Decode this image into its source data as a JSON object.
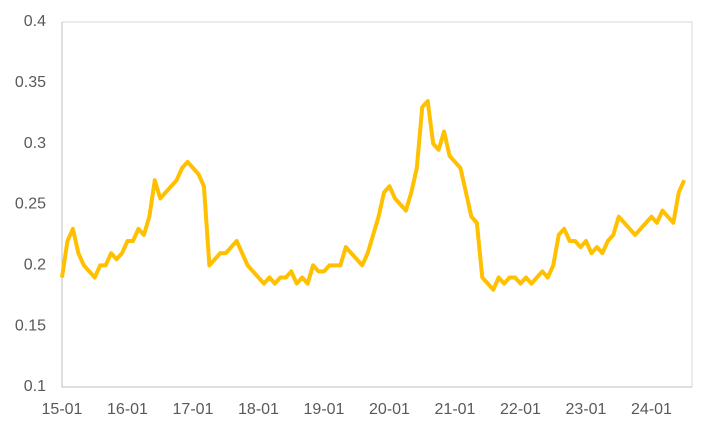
{
  "chart_data": {
    "type": "line",
    "categories": [
      "15-01",
      null,
      null,
      null,
      null,
      null,
      null,
      null,
      null,
      null,
      null,
      null,
      "16-01",
      null,
      null,
      null,
      null,
      null,
      null,
      null,
      null,
      null,
      null,
      null,
      "17-01",
      null,
      null,
      null,
      null,
      null,
      null,
      null,
      null,
      null,
      null,
      null,
      "18-01",
      null,
      null,
      null,
      null,
      null,
      null,
      null,
      null,
      null,
      null,
      null,
      "19-01",
      null,
      null,
      null,
      null,
      null,
      null,
      null,
      null,
      null,
      null,
      null,
      "20-01",
      null,
      null,
      null,
      null,
      null,
      null,
      null,
      null,
      null,
      null,
      null,
      "21-01",
      null,
      null,
      null,
      null,
      null,
      null,
      null,
      null,
      null,
      null,
      null,
      "22-01",
      null,
      null,
      null,
      null,
      null,
      null,
      null,
      null,
      null,
      null,
      null,
      "23-01",
      null,
      null,
      null,
      null,
      null,
      null,
      null,
      null,
      null,
      null,
      null,
      "24-01",
      null,
      null,
      null,
      null,
      null,
      null
    ],
    "values": [
      0.19,
      0.22,
      0.23,
      0.21,
      0.2,
      0.195,
      0.19,
      0.2,
      0.2,
      0.21,
      0.205,
      0.21,
      0.22,
      0.22,
      0.23,
      0.225,
      0.24,
      0.27,
      0.255,
      0.26,
      0.265,
      0.27,
      0.28,
      0.285,
      0.28,
      0.275,
      0.265,
      0.2,
      0.205,
      0.21,
      0.21,
      0.215,
      0.22,
      0.21,
      0.2,
      0.195,
      0.19,
      0.185,
      0.19,
      0.185,
      0.19,
      0.19,
      0.195,
      0.185,
      0.19,
      0.185,
      0.2,
      0.195,
      0.195,
      0.2,
      0.2,
      0.2,
      0.215,
      0.21,
      0.205,
      0.2,
      0.21,
      0.225,
      0.24,
      0.26,
      0.265,
      0.255,
      0.25,
      0.245,
      0.26,
      0.28,
      0.33,
      0.335,
      0.3,
      0.295,
      0.31,
      0.29,
      0.285,
      0.28,
      0.26,
      0.24,
      0.235,
      0.19,
      0.185,
      0.18,
      0.19,
      0.185,
      0.19,
      0.19,
      0.185,
      0.19,
      0.185,
      0.19,
      0.195,
      0.19,
      0.2,
      0.225,
      0.23,
      0.22,
      0.22,
      0.215,
      0.22,
      0.21,
      0.215,
      0.21,
      0.22,
      0.225,
      0.24,
      0.235,
      0.23,
      0.225,
      0.23,
      0.235,
      0.24,
      0.235,
      0.245,
      0.24,
      0.235,
      0.26,
      0.27
    ],
    "color": "#ffc000",
    "ylim": [
      0.1,
      0.4
    ],
    "yticks": [
      0.1,
      0.15,
      0.2,
      0.25,
      0.3,
      0.35,
      0.4
    ]
  }
}
